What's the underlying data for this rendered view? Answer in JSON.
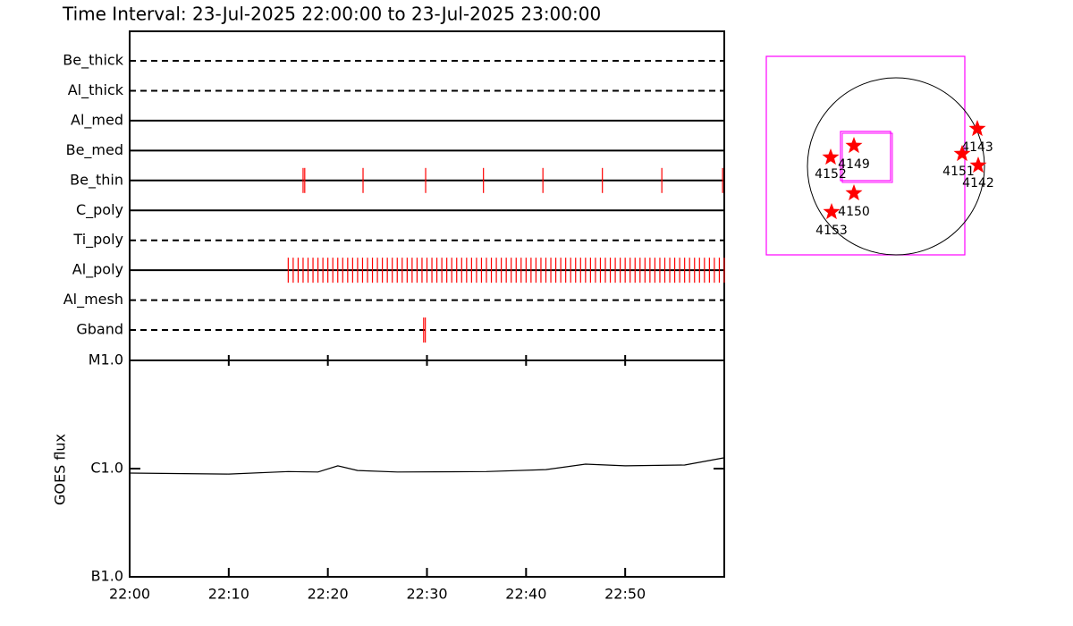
{
  "chart_data": [
    {
      "type": "timeline",
      "title": "Time Interval: 23-Jul-2025 22:00:00 to 23-Jul-2025 23:00:00",
      "categories": [
        "Be_thick",
        "Al_thick",
        "Al_med",
        "Be_med",
        "Be_thin",
        "C_poly",
        "Ti_poly",
        "Al_poly",
        "Al_mesh",
        "Gband"
      ],
      "line_styles": [
        "dashed",
        "dashed",
        "solid",
        "solid",
        "solid",
        "solid",
        "dashed",
        "solid",
        "dashed",
        "dashed"
      ],
      "events": [
        [],
        [],
        [],
        [],
        [
          "22:17:30",
          "22:17:40",
          "22:23:33",
          "22:29:52",
          "22:35:42",
          "22:41:42",
          "22:47:42",
          "22:53:42",
          "22:59:50"
        ],
        [],
        [],
        [
          "22:16:00",
          "22:16:30",
          "22:17:00",
          "22:17:30",
          "22:18:00",
          "22:18:30",
          "22:19:00",
          "22:19:30",
          "22:20:00",
          "22:20:30",
          "22:21:00",
          "22:21:30",
          "22:22:00",
          "22:22:30",
          "22:23:00",
          "22:23:30",
          "22:24:00",
          "22:24:30",
          "22:25:00",
          "22:25:30",
          "22:26:00",
          "22:26:30",
          "22:27:00",
          "22:27:30",
          "22:28:00",
          "22:28:30",
          "22:29:00",
          "22:29:30",
          "22:30:00",
          "22:30:30",
          "22:31:00",
          "22:31:30",
          "22:32:00",
          "22:32:30",
          "22:33:00",
          "22:33:30",
          "22:34:00",
          "22:34:30",
          "22:35:00",
          "22:35:30",
          "22:36:00",
          "22:36:30",
          "22:37:00",
          "22:37:30",
          "22:38:00",
          "22:38:30",
          "22:39:00",
          "22:39:30",
          "22:40:00",
          "22:40:30",
          "22:41:00",
          "22:41:30",
          "22:42:00",
          "22:42:30",
          "22:43:00",
          "22:43:30",
          "22:44:00",
          "22:44:30",
          "22:45:00",
          "22:45:30",
          "22:46:00",
          "22:46:30",
          "22:47:00",
          "22:47:30",
          "22:48:00",
          "22:48:30",
          "22:49:00",
          "22:49:30",
          "22:50:00",
          "22:50:30",
          "22:51:00",
          "22:51:30",
          "22:52:00",
          "22:52:30",
          "22:53:00",
          "22:53:30",
          "22:54:00",
          "22:54:30",
          "22:55:00",
          "22:55:30",
          "22:56:00",
          "22:56:30",
          "22:57:00",
          "22:57:30",
          "22:58:00",
          "22:58:30",
          "22:59:00",
          "22:59:30",
          "23:00:00"
        ],
        [],
        [
          "22:29:40",
          "22:29:50"
        ]
      ],
      "color": "#ff0000",
      "xlim": [
        "22:00",
        "23:00"
      ]
    },
    {
      "type": "line",
      "y_label": "GOES flux",
      "log_scale": true,
      "x": [
        "22:00",
        "22:10",
        "22:16",
        "22:19",
        "22:21",
        "22:23",
        "22:27",
        "22:36",
        "22:42",
        "22:46",
        "22:50",
        "22:56",
        "23:00"
      ],
      "values": [
        9.1e-07,
        8.9e-07,
        9.4e-07,
        9.3e-07,
        1.06e-06,
        9.6e-07,
        9.3e-07,
        9.4e-07,
        9.8e-07,
        1.1e-06,
        1.06e-06,
        1.08e-06,
        1.26e-06
      ],
      "color": "#000000",
      "ylim": [
        1e-07,
        1e-05
      ],
      "yticks": [
        {
          "value": 1e-07,
          "label": "B1.0"
        },
        {
          "value": 1e-06,
          "label": "C1.0"
        },
        {
          "value": 1e-05,
          "label": "M1.0"
        }
      ],
      "xlim": [
        "22:00",
        "23:00"
      ],
      "xticks": [
        "22:00",
        "22:10",
        "22:20",
        "22:30",
        "22:40",
        "22:50"
      ]
    },
    {
      "type": "map",
      "regions": [
        {
          "label": "4143"
        },
        {
          "label": "4152"
        },
        {
          "label": "4149"
        },
        {
          "label": "4151"
        },
        {
          "label": "4142"
        },
        {
          "label": "4150"
        },
        {
          "label": "4153"
        }
      ],
      "star_color": "#ff0000",
      "box_color": "#ff00ff"
    }
  ]
}
